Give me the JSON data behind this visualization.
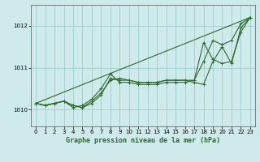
{
  "title": "Graphe pression niveau de la mer (hPa)",
  "background_color": "#ceeaea",
  "grid_color": "#9ecece",
  "line_color": "#2d6a2d",
  "xlim": [
    -0.5,
    23.5
  ],
  "ylim": [
    1009.6,
    1012.5
  ],
  "yticks": [
    1010,
    1011,
    1012
  ],
  "xticks": [
    0,
    1,
    2,
    3,
    4,
    5,
    6,
    7,
    8,
    9,
    10,
    11,
    12,
    13,
    14,
    15,
    16,
    17,
    18,
    19,
    20,
    21,
    22,
    23
  ],
  "lines": [
    {
      "x": [
        0,
        23
      ],
      "y": [
        1010.15,
        1012.2
      ],
      "marker": null,
      "lw": 0.8
    },
    {
      "x": [
        0,
        1,
        2,
        3,
        4,
        5,
        6,
        7,
        8,
        9,
        10,
        11,
        12,
        13,
        14,
        15,
        16,
        17,
        18,
        19,
        20,
        21,
        22,
        23
      ],
      "y": [
        1010.15,
        1010.1,
        1010.15,
        1010.2,
        1010.1,
        1010.05,
        1010.15,
        1010.35,
        1010.75,
        1010.7,
        1010.7,
        1010.65,
        1010.65,
        1010.65,
        1010.7,
        1010.7,
        1010.7,
        1010.65,
        1010.6,
        1011.15,
        1011.5,
        1011.1,
        1011.95,
        1012.2
      ],
      "marker": "+",
      "lw": 0.8
    },
    {
      "x": [
        0,
        1,
        2,
        3,
        4,
        5,
        6,
        7,
        8,
        9,
        10,
        11,
        12,
        13,
        14,
        15,
        16,
        17,
        18,
        19,
        20,
        21,
        22,
        23
      ],
      "y": [
        1010.15,
        1010.1,
        1010.15,
        1010.2,
        1010.05,
        1010.1,
        1010.25,
        1010.5,
        1010.85,
        1010.65,
        1010.65,
        1010.6,
        1010.6,
        1010.6,
        1010.65,
        1010.65,
        1010.65,
        1010.7,
        1011.6,
        1011.2,
        1011.1,
        1011.15,
        1011.85,
        1012.2
      ],
      "marker": "+",
      "lw": 0.8
    },
    {
      "x": [
        0,
        1,
        2,
        3,
        4,
        5,
        6,
        7,
        8,
        9,
        10,
        11,
        12,
        13,
        14,
        15,
        16,
        17,
        18,
        19,
        20,
        21,
        22,
        23
      ],
      "y": [
        1010.15,
        1010.1,
        1010.15,
        1010.2,
        1010.1,
        1010.05,
        1010.2,
        1010.4,
        1010.7,
        1010.75,
        1010.7,
        1010.65,
        1010.65,
        1010.65,
        1010.7,
        1010.7,
        1010.7,
        1010.7,
        1011.15,
        1011.65,
        1011.55,
        1011.65,
        1012.05,
        1012.2
      ],
      "marker": "+",
      "lw": 0.8
    }
  ]
}
